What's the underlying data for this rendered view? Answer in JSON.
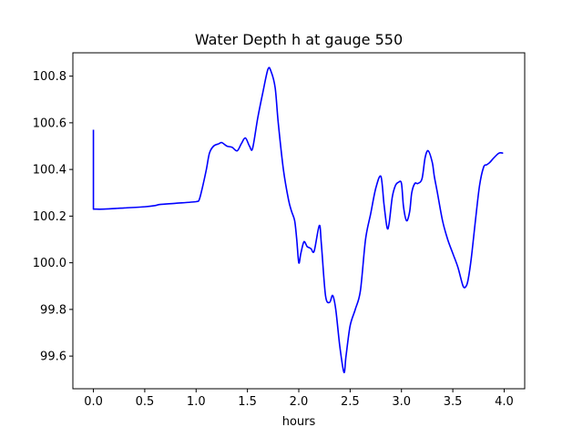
{
  "chart_data": {
    "type": "line",
    "title": "Water Depth h at gauge 550",
    "xlabel": "hours",
    "ylabel": "",
    "xlim": [
      -0.2,
      4.2
    ],
    "ylim": [
      99.46,
      100.9
    ],
    "grid": false,
    "x_ticks": [
      {
        "value": 0.0,
        "label": "0.0"
      },
      {
        "value": 0.5,
        "label": "0.5"
      },
      {
        "value": 1.0,
        "label": "1.0"
      },
      {
        "value": 1.5,
        "label": "1.5"
      },
      {
        "value": 2.0,
        "label": "2.0"
      },
      {
        "value": 2.5,
        "label": "2.5"
      },
      {
        "value": 3.0,
        "label": "3.0"
      },
      {
        "value": 3.5,
        "label": "3.5"
      },
      {
        "value": 4.0,
        "label": "4.0"
      }
    ],
    "y_ticks": [
      {
        "value": 99.6,
        "label": "99.6"
      },
      {
        "value": 99.8,
        "label": "99.8"
      },
      {
        "value": 100.0,
        "label": "100.0"
      },
      {
        "value": 100.2,
        "label": "100.2"
      },
      {
        "value": 100.4,
        "label": "100.4"
      },
      {
        "value": 100.6,
        "label": "100.6"
      },
      {
        "value": 100.8,
        "label": "100.8"
      }
    ],
    "series": [
      {
        "color": "#0000ff",
        "x": [
          0.0,
          0.0,
          0.1,
          0.3,
          0.5,
          0.6,
          0.65,
          0.8,
          1.0,
          1.03,
          1.06,
          1.1,
          1.13,
          1.17,
          1.22,
          1.25,
          1.3,
          1.35,
          1.4,
          1.44,
          1.48,
          1.52,
          1.55,
          1.6,
          1.65,
          1.7,
          1.73,
          1.77,
          1.8,
          1.85,
          1.9,
          1.93,
          1.96,
          1.98,
          2.0,
          2.02,
          2.05,
          2.08,
          2.1,
          2.12,
          2.15,
          2.2,
          2.22,
          2.26,
          2.3,
          2.33,
          2.36,
          2.4,
          2.44,
          2.46,
          2.5,
          2.55,
          2.6,
          2.65,
          2.7,
          2.75,
          2.8,
          2.83,
          2.86,
          2.88,
          2.91,
          2.94,
          2.97,
          3.0,
          3.02,
          3.05,
          3.08,
          3.1,
          3.13,
          3.16,
          3.2,
          3.23,
          3.26,
          3.3,
          3.32,
          3.35,
          3.4,
          3.45,
          3.5,
          3.55,
          3.6,
          3.63,
          3.65,
          3.68,
          3.72,
          3.76,
          3.8,
          3.83,
          3.86,
          3.9,
          3.95,
          3.99
        ],
        "values": [
          100.57,
          100.23,
          100.23,
          100.235,
          100.24,
          100.245,
          100.25,
          100.255,
          100.262,
          100.27,
          100.32,
          100.4,
          100.47,
          100.5,
          100.51,
          100.515,
          100.5,
          100.495,
          100.48,
          100.51,
          100.535,
          100.5,
          100.49,
          100.62,
          100.73,
          100.83,
          100.82,
          100.75,
          100.6,
          100.4,
          100.27,
          100.22,
          100.18,
          100.1,
          100.0,
          100.04,
          100.09,
          100.07,
          100.065,
          100.06,
          100.05,
          100.16,
          100.08,
          99.86,
          99.83,
          99.86,
          99.8,
          99.64,
          99.53,
          99.6,
          99.73,
          99.8,
          99.88,
          100.1,
          100.21,
          100.32,
          100.37,
          100.25,
          100.15,
          100.17,
          100.28,
          100.33,
          100.345,
          100.34,
          100.24,
          100.18,
          100.22,
          100.3,
          100.34,
          100.34,
          100.36,
          100.45,
          100.48,
          100.43,
          100.37,
          100.3,
          100.18,
          100.1,
          100.04,
          99.98,
          99.9,
          99.9,
          99.93,
          100.02,
          100.18,
          100.33,
          100.41,
          100.42,
          100.43,
          100.45,
          100.47,
          100.47
        ]
      }
    ]
  }
}
